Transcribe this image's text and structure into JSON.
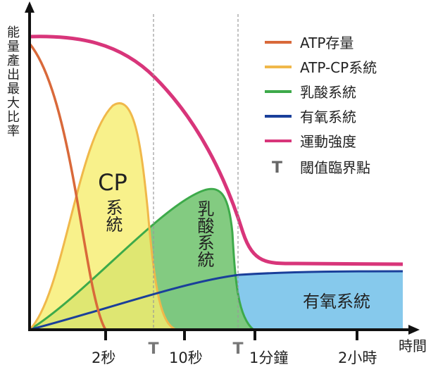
{
  "chart_data": {
    "type": "area",
    "ylabel": "能量產出最大比率",
    "xlabel": "時間",
    "x_ticks": [
      "2秒",
      "10秒",
      "1分鐘",
      "2小時"
    ],
    "threshold_marker": "T",
    "grid": false,
    "legend_position": "top-right",
    "series": [
      {
        "name": "ATP存量",
        "color": "#d9693a"
      },
      {
        "name": "ATP-CP系統",
        "color": "#f0b84a"
      },
      {
        "name": "乳酸系統",
        "color": "#3daa4a"
      },
      {
        "name": "有氧系統",
        "color": "#1a3f9a"
      },
      {
        "name": "運動強度",
        "color": "#d8357a"
      }
    ],
    "legend_threshold_label": "閾值臨界點",
    "annotations": {
      "cp_label_top": "CP",
      "cp_label_bottom": "系統",
      "lactic_label": "乳酸系統",
      "aerobic_label": "有氧系統"
    }
  }
}
